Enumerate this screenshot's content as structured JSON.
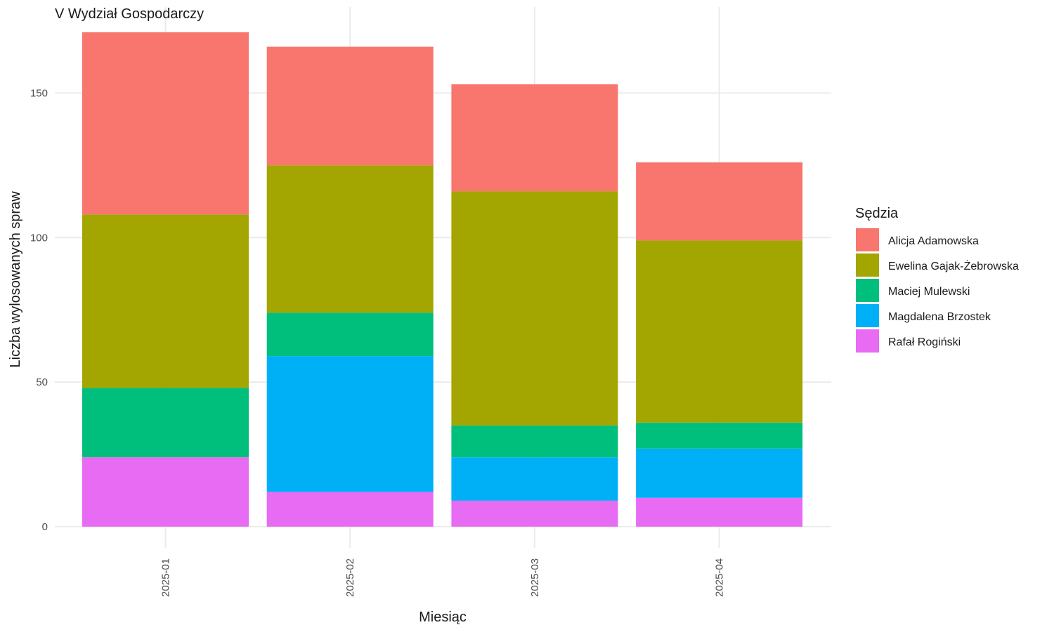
{
  "chart_data": {
    "type": "bar",
    "stacked": true,
    "title": "V Wydział Gospodarczy",
    "xlabel": "Miesiąc",
    "ylabel": "Liczba wylosowanych spraw",
    "categories": [
      "2025-01",
      "2025-02",
      "2025-03",
      "2025-04"
    ],
    "ylim": [
      0,
      175
    ],
    "yticks": [
      0,
      50,
      100,
      150
    ],
    "ytick_labels": [
      "0",
      "50",
      "100",
      "150"
    ],
    "grid": true,
    "legend": {
      "title": "Sędzia",
      "position": "right"
    },
    "series": [
      {
        "name": "Rafał Rogiński",
        "color": "#E76BF3",
        "values": [
          24,
          12,
          9,
          10
        ]
      },
      {
        "name": "Magdalena Brzostek",
        "color": "#00B0F6",
        "values": [
          0,
          47,
          15,
          17
        ]
      },
      {
        "name": "Maciej Mulewski",
        "color": "#00BF7D",
        "values": [
          24,
          15,
          11,
          9
        ]
      },
      {
        "name": "Ewelina Gajak-Żebrowska",
        "color": "#A3A500",
        "values": [
          60,
          51,
          81,
          63
        ]
      },
      {
        "name": "Alicja Adamowska",
        "color": "#F8766D",
        "values": [
          63,
          41,
          37,
          27
        ]
      }
    ],
    "legend_order": [
      "Alicja Adamowska",
      "Ewelina Gajak-Żebrowska",
      "Maciej Mulewski",
      "Magdalena Brzostek",
      "Rafał Rogiński"
    ]
  }
}
